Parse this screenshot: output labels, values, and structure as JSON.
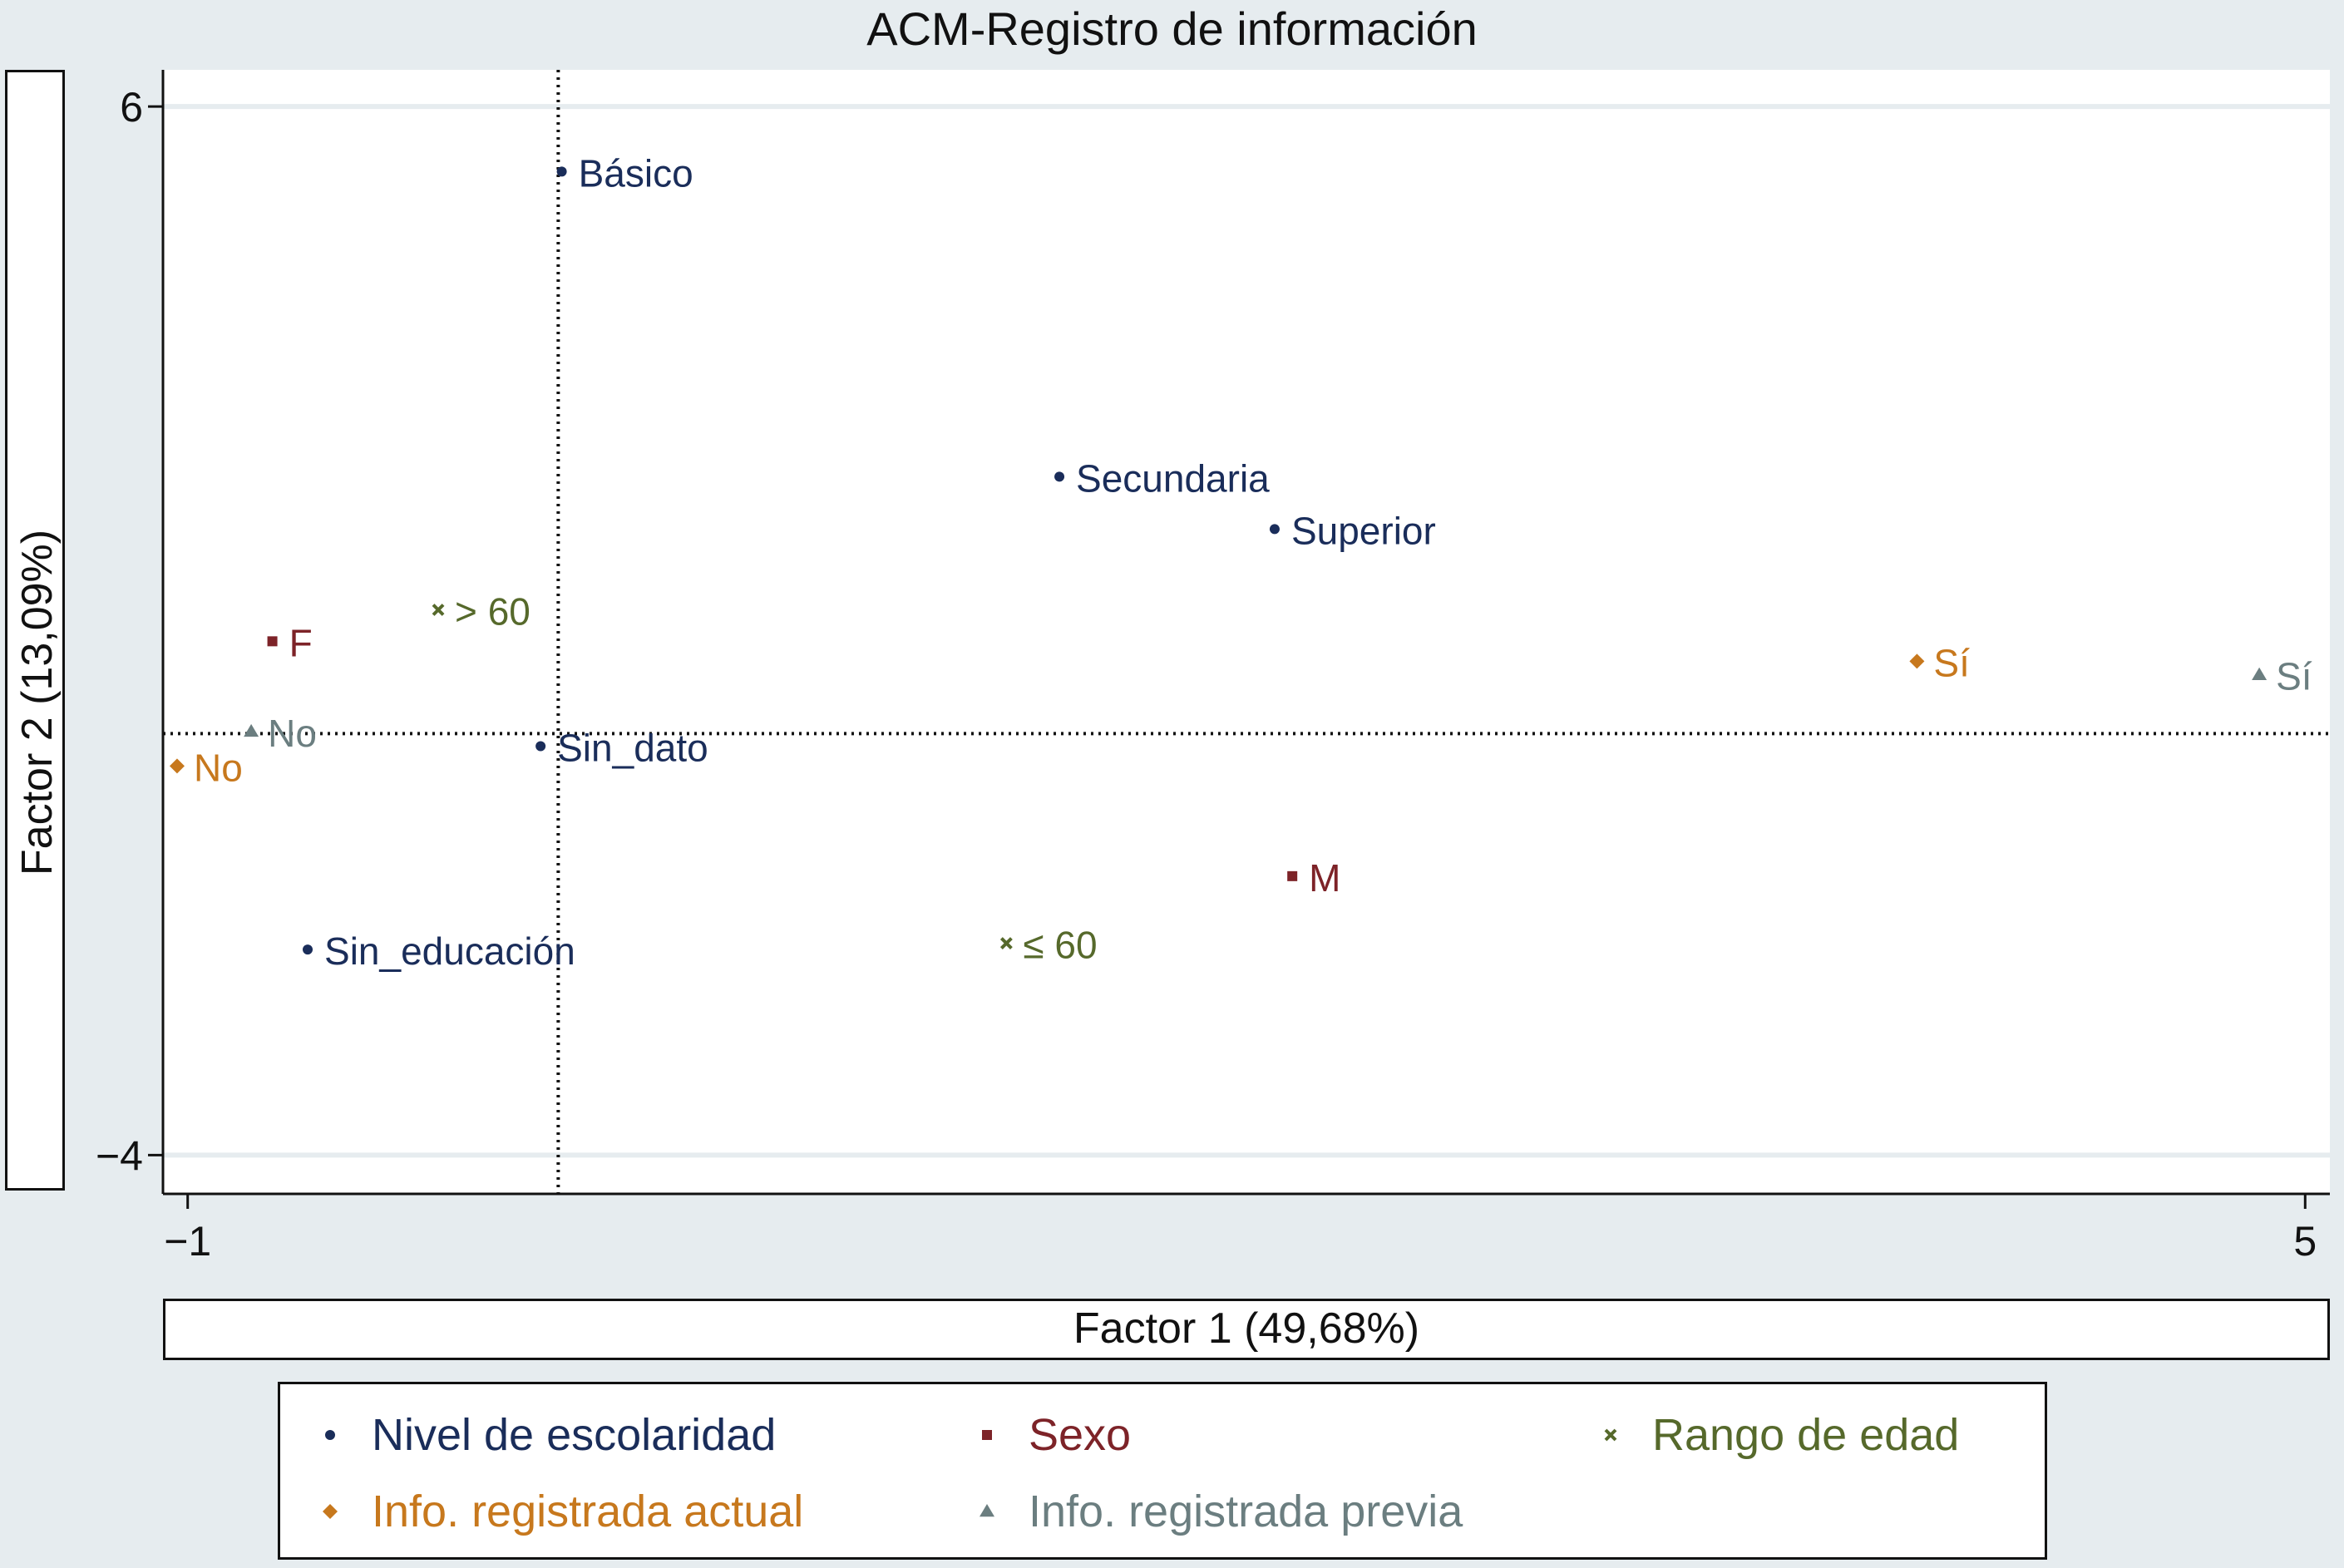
{
  "chart_data": {
    "type": "scatter",
    "title": "ACM-Registro de información",
    "xlabel": "Factor 1 (49,68%)",
    "ylabel": "Factor 2 (13,09%)",
    "xlim": [
      -1.07,
      5.07
    ],
    "ylim": [
      -4.37,
      6.35
    ],
    "xticks": [
      -1,
      5
    ],
    "yticks": [
      6,
      -4
    ],
    "xtick_labels": [
      "−1",
      "5"
    ],
    "ytick_labels": [
      "6",
      "−4"
    ],
    "reference_lines": {
      "x": 0.05,
      "y": 0.02
    },
    "grid": true,
    "legend_position": "bottom",
    "series": [
      {
        "name": "Nivel de escolaridad",
        "color": "#1a2d5a",
        "marker": "circle",
        "points": [
          {
            "label": "Básico",
            "x": 0.06,
            "y": 5.38
          },
          {
            "label": "Secundaria",
            "x": 1.47,
            "y": 2.47
          },
          {
            "label": "Superior",
            "x": 2.08,
            "y": 1.97
          },
          {
            "label": "Sin_dato",
            "x": 0.0,
            "y": -0.1
          },
          {
            "label": "Sin_educación",
            "x": -0.66,
            "y": -2.04
          }
        ]
      },
      {
        "name": "Sexo",
        "color": "#7d2328",
        "marker": "square",
        "points": [
          {
            "label": "F",
            "x": -0.76,
            "y": 0.9
          },
          {
            "label": "M",
            "x": 2.13,
            "y": -1.34
          }
        ]
      },
      {
        "name": "Rango de edad",
        "color": "#56692b",
        "marker": "x",
        "points": [
          {
            "label": "> 60",
            "x": -0.29,
            "y": 1.2
          },
          {
            "label": "≤ 60",
            "x": 1.32,
            "y": -1.98
          }
        ]
      },
      {
        "name": "Info. registrada actual",
        "color": "#c7781d",
        "marker": "diamond",
        "points": [
          {
            "label": "Sí",
            "x": 3.9,
            "y": 0.71
          },
          {
            "label": "No",
            "x": -1.03,
            "y": -0.29
          }
        ]
      },
      {
        "name": "Info. registrada previa",
        "color": "#6b7e80",
        "marker": "triangle",
        "points": [
          {
            "label": "Sí",
            "x": 4.87,
            "y": 0.58
          },
          {
            "label": "No",
            "x": -0.82,
            "y": 0.04
          }
        ]
      }
    ]
  }
}
